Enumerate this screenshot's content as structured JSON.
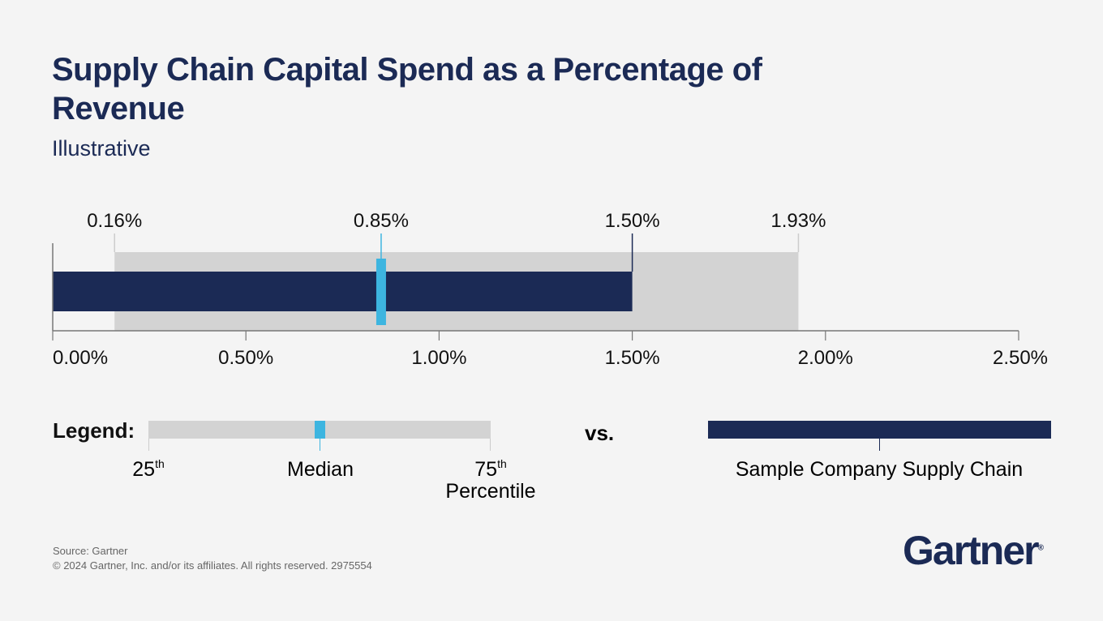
{
  "title": "Supply Chain Capital Spend as a Percentage of Revenue",
  "subtitle": "Illustrative",
  "chart_data": {
    "type": "bullet",
    "xlim": [
      0,
      2.5
    ],
    "x_ticks": [
      "0.00%",
      "0.50%",
      "1.00%",
      "1.50%",
      "2.00%",
      "2.50%"
    ],
    "x_tick_values": [
      0,
      0.5,
      1.0,
      1.5,
      2.0,
      2.5
    ],
    "percentile_25": 0.16,
    "median": 0.85,
    "percentile_75": 1.93,
    "sample_company": 1.5,
    "value_labels": {
      "p25": "0.16%",
      "median": "0.85%",
      "company": "1.50%",
      "p75": "1.93%"
    },
    "colors": {
      "range": "#d3d3d3",
      "median": "#3db5e0",
      "company": "#1b2a55",
      "axis": "#777777"
    }
  },
  "legend": {
    "heading": "Legend:",
    "p25_label": "25",
    "p25_sup": "th",
    "median_label": "Median",
    "p75_label": "75",
    "p75_sup": "th",
    "percentile_label": "Percentile",
    "vs_label": "vs.",
    "company_label": "Sample Company Supply Chain"
  },
  "footer": {
    "source": "Source: Gartner",
    "copyright": "© 2024 Gartner, Inc. and/or its affiliates. All rights reserved. 2975554"
  },
  "logo": {
    "text": "Gartner",
    "mark": "®"
  }
}
